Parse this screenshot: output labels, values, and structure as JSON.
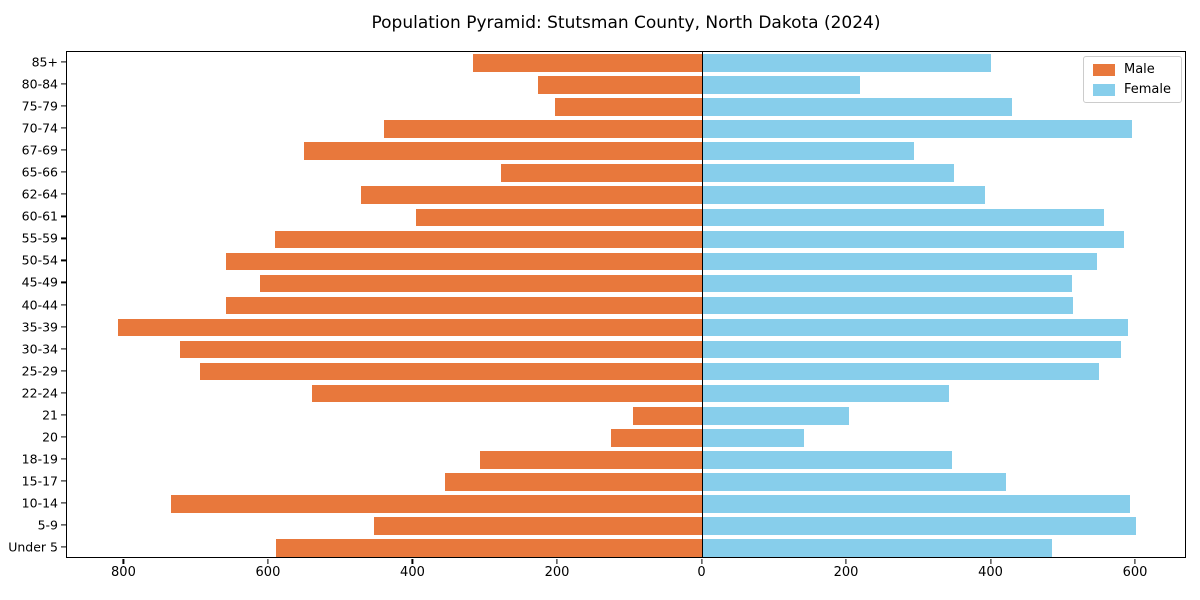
{
  "title": "Population Pyramid: Stutsman County, North Dakota (2024)",
  "legend": {
    "male_label": "Male",
    "female_label": "Female",
    "position": "upper right"
  },
  "colors": {
    "male": "#e8783c",
    "female": "#87ceeb",
    "axis": "#000000",
    "legend_border": "#cccccc",
    "background": "#ffffff"
  },
  "chart_data": {
    "type": "bar",
    "subtype": "population-pyramid",
    "title": "Population Pyramid: Stutsman County, North Dakota (2024)",
    "xlabel": "",
    "ylabel": "",
    "grid": false,
    "legend_position": "upper right",
    "categories_top_to_bottom": [
      "85+",
      "80-84",
      "75-79",
      "70-74",
      "67-69",
      "65-66",
      "62-64",
      "60-61",
      "55-59",
      "50-54",
      "45-49",
      "40-44",
      "35-39",
      "30-34",
      "25-29",
      "22-24",
      "21",
      "20",
      "18-19",
      "15-17",
      "10-14",
      "5-9",
      "Under 5"
    ],
    "series": [
      {
        "name": "Male",
        "side": "left",
        "color": "#e8783c",
        "values": [
          318,
          228,
          204,
          441,
          552,
          279,
          472,
          396,
          592,
          660,
          613,
          659,
          809,
          723,
          695,
          540,
          96,
          127,
          308,
          357,
          736,
          455,
          590
        ]
      },
      {
        "name": "Female",
        "side": "right",
        "color": "#87ceeb",
        "values": [
          399,
          218,
          428,
          595,
          293,
          348,
          391,
          555,
          584,
          546,
          512,
          513,
          589,
          579,
          549,
          341,
          203,
          140,
          345,
          420,
          592,
          600,
          483
        ]
      }
    ],
    "x_tick_values": [
      -800,
      -600,
      -400,
      -200,
      0,
      200,
      400,
      600
    ],
    "x_tick_labels": [
      "800",
      "600",
      "400",
      "200",
      "0",
      "200",
      "400",
      "600"
    ],
    "xlim": [
      -879.5,
      670.5
    ],
    "bar_height_fraction": 0.8
  }
}
